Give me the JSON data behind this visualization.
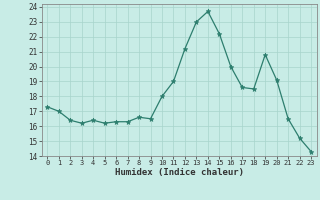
{
  "x": [
    0,
    1,
    2,
    3,
    4,
    5,
    6,
    7,
    8,
    9,
    10,
    11,
    12,
    13,
    14,
    15,
    16,
    17,
    18,
    19,
    20,
    21,
    22,
    23
  ],
  "y": [
    17.3,
    17.0,
    16.4,
    16.2,
    16.4,
    16.2,
    16.3,
    16.3,
    16.6,
    16.5,
    18.0,
    19.0,
    21.2,
    23.0,
    23.7,
    22.2,
    20.0,
    18.6,
    18.5,
    20.8,
    19.1,
    16.5,
    15.2,
    14.3
  ],
  "line_color": "#2d7e6e",
  "marker": "*",
  "marker_size": 3.5,
  "bg_color": "#c8ece6",
  "grid_color": "#a8d4cc",
  "xlabel": "Humidex (Indice chaleur)",
  "ylabel_ticks": [
    14,
    15,
    16,
    17,
    18,
    19,
    20,
    21,
    22,
    23,
    24
  ],
  "xlim": [
    -0.5,
    23.5
  ],
  "ylim": [
    14,
    24.2
  ],
  "xtick_fontsize": 5.0,
  "ytick_fontsize": 5.5,
  "xlabel_fontsize": 6.5
}
